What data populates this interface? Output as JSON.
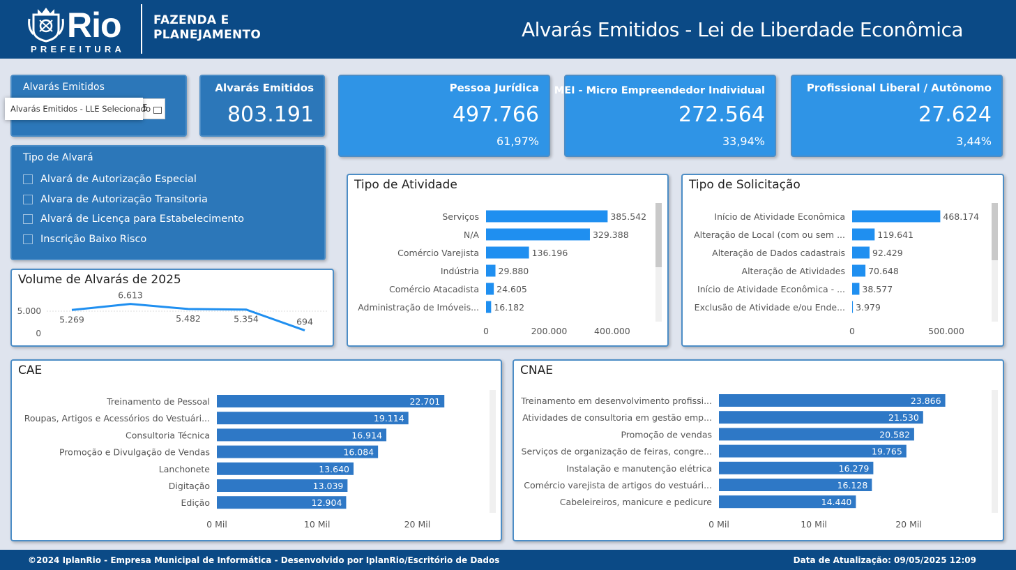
{
  "header": {
    "logo_name": "Rio",
    "logo_sub": "PREFEITURA",
    "org_line1": "FAZENDA E",
    "org_line2": "PLANEJAMENTO",
    "title": "Alvarás Emitidos - Lei de Liberdade Econômica",
    "color": "#0b4a86"
  },
  "date_slicer": {
    "title": "Alvarás Emitidos",
    "tooltip": "Alvarás Emitidos - LLE Selecionado",
    "value_fragment": "5"
  },
  "kpis": [
    {
      "label": "Alvarás Emitidos",
      "value": "803.191",
      "pct": ""
    },
    {
      "label": "Pessoa Jurídica",
      "value": "497.766",
      "pct": "61,97%"
    },
    {
      "label": "MEI - Micro Empreendedor Individual",
      "value": "272.564",
      "pct": "33,94%"
    },
    {
      "label": "Profissional Liberal / Autônomo",
      "value": "27.624",
      "pct": "3,44%"
    }
  ],
  "tipo_alvara": {
    "title": "Tipo de Alvará",
    "items": [
      "Alvará de Autorização Especial",
      "Alvara de Autorização Transitoria",
      "Alvará de Licença para Estabelecimento",
      "Inscrição Baixo Risco"
    ]
  },
  "colors": {
    "bar_bright": "#1f8ff0",
    "bar_dark": "#2e78c6",
    "kpi_dark": "#2c77b9",
    "kpi_bright": "#2f94e6"
  },
  "chart_data": [
    {
      "id": "volume",
      "type": "line",
      "title": "Volume de Alvarás de 2025",
      "values": [
        5269,
        6613,
        5482,
        5354,
        694
      ],
      "value_labels": [
        "5.269",
        "6.613",
        "5.482",
        "5.354",
        "694"
      ],
      "yticks": [
        {
          "v": 0,
          "label": "0"
        },
        {
          "v": 5000,
          "label": "5.000"
        }
      ],
      "ylim": [
        0,
        7500
      ],
      "grid": true
    },
    {
      "id": "atividade",
      "type": "bar",
      "orientation": "horizontal",
      "title": "Tipo de Atividade",
      "categories": [
        "Serviços",
        "N/A",
        "Comércio Varejista",
        "Indústria",
        "Comércio Atacadista",
        "Administração de Imóveis..."
      ],
      "values": [
        385542,
        329388,
        136196,
        29880,
        24605,
        16182
      ],
      "value_labels": [
        "385.542",
        "329.388",
        "136.196",
        "29.880",
        "24.605",
        "16.182"
      ],
      "xticks": [
        {
          "v": 0,
          "label": "0"
        },
        {
          "v": 200000,
          "label": "200.000"
        },
        {
          "v": 400000,
          "label": "400.000"
        }
      ],
      "xlim": [
        0,
        440000
      ]
    },
    {
      "id": "solicitacao",
      "type": "bar",
      "orientation": "horizontal",
      "title": "Tipo de Solicitação",
      "categories": [
        "Início de Atividade Econômica",
        "Alteração de Local (com ou sem ...",
        "Alteração de Dados cadastrais",
        "Alteração de Atividades",
        "Início de Atividade Econômica - ...",
        "Exclusão de Atividade e/ou Ende..."
      ],
      "values": [
        468174,
        119641,
        92429,
        70648,
        38577,
        3979
      ],
      "value_labels": [
        "468.174",
        "119.641",
        "92.429",
        "70.648",
        "38.577",
        "3.979"
      ],
      "xticks": [
        {
          "v": 0,
          "label": "0"
        },
        {
          "v": 500000,
          "label": "500.000"
        }
      ],
      "xlim": [
        0,
        700000
      ]
    },
    {
      "id": "cae",
      "type": "bar",
      "orientation": "horizontal",
      "title": "CAE",
      "categories": [
        "Treinamento de Pessoal",
        "Roupas, Artigos e Acessórios do Vestuári...",
        "Consultoria Técnica",
        "Promoção e Divulgação de Vendas",
        "Lanchonete",
        "Digitação",
        "Edição"
      ],
      "values": [
        22701,
        19114,
        16914,
        16084,
        13640,
        13039,
        12904
      ],
      "value_labels": [
        "22.701",
        "19.114",
        "16.914",
        "16.084",
        "13.640",
        "13.039",
        "12.904"
      ],
      "xticks": [
        {
          "v": 0,
          "label": "0 Mil"
        },
        {
          "v": 10000,
          "label": "10 Mil"
        },
        {
          "v": 20000,
          "label": "20 Mil"
        }
      ],
      "xlim": [
        0,
        27000
      ]
    },
    {
      "id": "cnae",
      "type": "bar",
      "orientation": "horizontal",
      "title": "CNAE",
      "categories": [
        "Treinamento em desenvolvimento profissi...",
        "Atividades de consultoria em gestão emp...",
        "Promoção de vendas",
        "Serviços de organização de feiras, congre...",
        "Instalação e manutenção elétrica",
        "Comércio varejista de artigos do vestuári...",
        "Cabeleireiros, manicure e pedicure"
      ],
      "values": [
        23866,
        21530,
        20582,
        19765,
        16279,
        16128,
        14440
      ],
      "value_labels": [
        "23.866",
        "21.530",
        "20.582",
        "19.765",
        "16.279",
        "16.128",
        "14.440"
      ],
      "xticks": [
        {
          "v": 0,
          "label": "0 Mil"
        },
        {
          "v": 10000,
          "label": "10 Mil"
        },
        {
          "v": 20000,
          "label": "20 Mil"
        }
      ],
      "xlim": [
        0,
        27500
      ]
    }
  ],
  "footer": {
    "left": "©2024 IplanRio - Empresa Municipal de Informática - Desenvolvido por IplanRio/Escritório de Dados",
    "right": "Data de Atualização: 09/05/2025 12:09"
  }
}
